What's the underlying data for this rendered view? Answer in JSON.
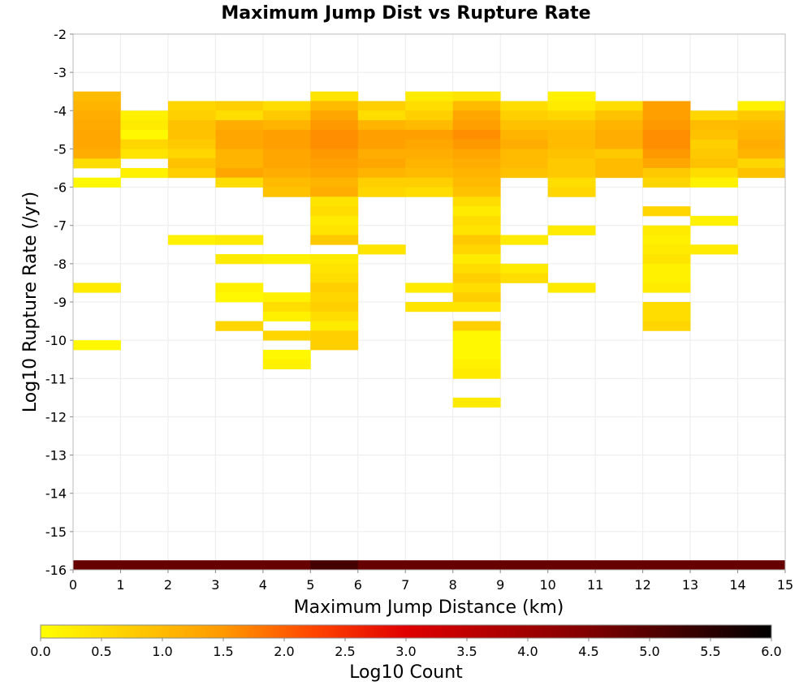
{
  "chart_data": {
    "type": "heatmap",
    "title": "Maximum Jump Dist vs Rupture Rate",
    "xlabel": "Maximum Jump Distance (km)",
    "ylabel": "Log10 Rupture Rate (/yr)",
    "xlim": [
      0,
      15
    ],
    "ylim": [
      -16,
      -2
    ],
    "x_ticks": [
      0,
      1,
      2,
      3,
      4,
      5,
      6,
      7,
      8,
      9,
      10,
      11,
      12,
      13,
      14,
      15
    ],
    "y_ticks": [
      -2,
      -3,
      -4,
      -5,
      -6,
      -7,
      -8,
      -9,
      -10,
      -11,
      -12,
      -13,
      -14,
      -15,
      -16
    ],
    "bin_width_x": 1,
    "bin_height_y": 0.25,
    "grid": true,
    "colorscale": {
      "label": "Log10 Count",
      "min": 0,
      "max": 6,
      "ticks": [
        "0.0",
        "0.5",
        "1.0",
        "1.5",
        "2.0",
        "2.5",
        "3.0",
        "3.5",
        "4.0",
        "4.5",
        "5.0",
        "5.5",
        "6.0"
      ],
      "stops": [
        "#ffff00",
        "#ffcc00",
        "#ff9900",
        "#ff4400",
        "#e00000",
        "#b00000",
        "#800000",
        "#400000",
        "#000000"
      ]
    },
    "cells_note": "each column: x bin start, then [y_bin_bottom, log10_count] pairs; y bins are 0.25 wide",
    "columns": [
      {
        "x": 0,
        "cells": [
          [
            -3.75,
            1.0
          ],
          [
            -4.0,
            1.1
          ],
          [
            -4.25,
            1.2
          ],
          [
            -4.5,
            1.25
          ],
          [
            -4.75,
            1.3
          ],
          [
            -5.0,
            1.3
          ],
          [
            -5.25,
            1.2
          ],
          [
            -5.5,
            0.5
          ],
          [
            -6.0,
            0.1
          ],
          [
            -8.75,
            0.3
          ],
          [
            -10.25,
            0.1
          ],
          [
            -16.0,
            4.8
          ]
        ]
      },
      {
        "x": 1,
        "cells": [
          [
            -4.25,
            0.2
          ],
          [
            -4.5,
            0.3
          ],
          [
            -4.75,
            0.1
          ],
          [
            -5.0,
            0.6
          ],
          [
            -5.25,
            0.4
          ],
          [
            -5.75,
            0.2
          ],
          [
            -16.0,
            4.8
          ]
        ]
      },
      {
        "x": 2,
        "cells": [
          [
            -4.0,
            0.6
          ],
          [
            -4.25,
            0.7
          ],
          [
            -4.5,
            0.9
          ],
          [
            -4.75,
            0.9
          ],
          [
            -5.0,
            0.8
          ],
          [
            -5.25,
            0.6
          ],
          [
            -5.5,
            0.9
          ],
          [
            -5.75,
            0.7
          ],
          [
            -7.5,
            0.2
          ],
          [
            -16.0,
            4.8
          ]
        ]
      },
      {
        "x": 3,
        "cells": [
          [
            -4.0,
            0.7
          ],
          [
            -4.25,
            0.5
          ],
          [
            -4.5,
            1.2
          ],
          [
            -4.75,
            1.3
          ],
          [
            -5.0,
            1.3
          ],
          [
            -5.25,
            1.1
          ],
          [
            -5.5,
            1.1
          ],
          [
            -5.75,
            1.3
          ],
          [
            -6.0,
            0.5
          ],
          [
            -7.5,
            0.3
          ],
          [
            -8.0,
            0.3
          ],
          [
            -8.75,
            0.2
          ],
          [
            -9.0,
            0.1
          ],
          [
            -9.75,
            0.6
          ],
          [
            -16.0,
            4.8
          ]
        ]
      },
      {
        "x": 4,
        "cells": [
          [
            -4.0,
            0.5
          ],
          [
            -4.25,
            0.8
          ],
          [
            -4.5,
            1.1
          ],
          [
            -4.75,
            1.4
          ],
          [
            -5.0,
            1.4
          ],
          [
            -5.25,
            1.3
          ],
          [
            -5.5,
            1.3
          ],
          [
            -5.75,
            1.2
          ],
          [
            -6.0,
            1.0
          ],
          [
            -6.25,
            0.9
          ],
          [
            -8.0,
            0.2
          ],
          [
            -9.0,
            0.2
          ],
          [
            -9.25,
            0.5
          ],
          [
            -9.5,
            0.2
          ],
          [
            -10.0,
            0.6
          ],
          [
            -10.5,
            0.1
          ],
          [
            -10.75,
            0.2
          ],
          [
            -16.0,
            4.8
          ]
        ]
      },
      {
        "x": 5,
        "cells": [
          [
            -3.75,
            0.4
          ],
          [
            -4.0,
            1.0
          ],
          [
            -4.25,
            1.3
          ],
          [
            -4.5,
            1.5
          ],
          [
            -4.75,
            1.6
          ],
          [
            -5.0,
            1.6
          ],
          [
            -5.25,
            1.5
          ],
          [
            -5.5,
            1.4
          ],
          [
            -5.75,
            1.3
          ],
          [
            -6.0,
            1.1
          ],
          [
            -6.25,
            1.2
          ],
          [
            -6.5,
            0.4
          ],
          [
            -6.75,
            0.5
          ],
          [
            -7.0,
            0.3
          ],
          [
            -7.25,
            0.4
          ],
          [
            -7.5,
            0.8
          ],
          [
            -8.0,
            0.3
          ],
          [
            -8.25,
            0.4
          ],
          [
            -8.5,
            0.5
          ],
          [
            -8.75,
            0.7
          ],
          [
            -9.0,
            0.6
          ],
          [
            -9.25,
            0.7
          ],
          [
            -9.5,
            0.5
          ],
          [
            -9.75,
            0.3
          ],
          [
            -10.0,
            0.7
          ],
          [
            -10.25,
            0.7
          ],
          [
            -16.0,
            5.2
          ]
        ]
      },
      {
        "x": 6,
        "cells": [
          [
            -4.0,
            0.7
          ],
          [
            -4.25,
            0.5
          ],
          [
            -4.5,
            1.1
          ],
          [
            -4.75,
            1.4
          ],
          [
            -5.0,
            1.4
          ],
          [
            -5.25,
            1.2
          ],
          [
            -5.5,
            1.3
          ],
          [
            -5.75,
            1.1
          ],
          [
            -6.0,
            0.7
          ],
          [
            -6.25,
            0.6
          ],
          [
            -7.75,
            0.4
          ],
          [
            -16.0,
            4.8
          ]
        ]
      },
      {
        "x": 7,
        "cells": [
          [
            -3.75,
            0.3
          ],
          [
            -4.0,
            0.5
          ],
          [
            -4.25,
            0.7
          ],
          [
            -4.5,
            1.0
          ],
          [
            -4.75,
            1.4
          ],
          [
            -5.0,
            1.3
          ],
          [
            -5.25,
            1.2
          ],
          [
            -5.5,
            1.1
          ],
          [
            -5.75,
            1.0
          ],
          [
            -6.0,
            0.7
          ],
          [
            -6.25,
            0.5
          ],
          [
            -8.75,
            0.3
          ],
          [
            -9.25,
            0.4
          ],
          [
            -16.0,
            4.8
          ]
        ]
      },
      {
        "x": 8,
        "cells": [
          [
            -3.75,
            0.4
          ],
          [
            -4.0,
            1.0
          ],
          [
            -4.25,
            1.3
          ],
          [
            -4.5,
            1.4
          ],
          [
            -4.75,
            1.6
          ],
          [
            -5.0,
            1.5
          ],
          [
            -5.25,
            1.3
          ],
          [
            -5.5,
            1.2
          ],
          [
            -5.75,
            1.1
          ],
          [
            -6.0,
            1.0
          ],
          [
            -6.25,
            0.9
          ],
          [
            -6.5,
            0.5
          ],
          [
            -6.75,
            0.3
          ],
          [
            -7.0,
            0.5
          ],
          [
            -7.25,
            0.4
          ],
          [
            -7.5,
            0.8
          ],
          [
            -7.75,
            0.6
          ],
          [
            -8.0,
            0.3
          ],
          [
            -8.25,
            0.5
          ],
          [
            -8.5,
            0.7
          ],
          [
            -8.75,
            0.5
          ],
          [
            -9.0,
            0.7
          ],
          [
            -9.25,
            0.4
          ],
          [
            -9.75,
            0.7
          ],
          [
            -10.0,
            0.1
          ],
          [
            -10.25,
            0.1
          ],
          [
            -10.5,
            0.1
          ],
          [
            -10.75,
            0.2
          ],
          [
            -11.0,
            0.3
          ],
          [
            -11.75,
            0.3
          ],
          [
            -16.0,
            4.8
          ]
        ]
      },
      {
        "x": 9,
        "cells": [
          [
            -4.0,
            0.5
          ],
          [
            -4.25,
            0.7
          ],
          [
            -4.5,
            0.9
          ],
          [
            -4.75,
            1.1
          ],
          [
            -5.0,
            1.2
          ],
          [
            -5.25,
            1.0
          ],
          [
            -5.5,
            1.0
          ],
          [
            -5.75,
            0.9
          ],
          [
            -7.5,
            0.3
          ],
          [
            -8.25,
            0.3
          ],
          [
            -8.5,
            0.5
          ],
          [
            -16.0,
            4.8
          ]
        ]
      },
      {
        "x": 10,
        "cells": [
          [
            -3.75,
            0.2
          ],
          [
            -4.0,
            0.3
          ],
          [
            -4.25,
            0.6
          ],
          [
            -4.5,
            0.9
          ],
          [
            -4.75,
            1.0
          ],
          [
            -5.0,
            1.0
          ],
          [
            -5.25,
            0.9
          ],
          [
            -5.5,
            0.8
          ],
          [
            -5.75,
            0.8
          ],
          [
            -6.0,
            0.5
          ],
          [
            -6.25,
            0.6
          ],
          [
            -7.25,
            0.3
          ],
          [
            -8.75,
            0.3
          ],
          [
            -16.0,
            4.8
          ]
        ]
      },
      {
        "x": 11,
        "cells": [
          [
            -4.0,
            0.5
          ],
          [
            -4.25,
            0.9
          ],
          [
            -4.5,
            1.1
          ],
          [
            -4.75,
            1.2
          ],
          [
            -5.0,
            1.2
          ],
          [
            -5.25,
            0.8
          ],
          [
            -5.5,
            1.0
          ],
          [
            -5.75,
            1.0
          ],
          [
            -16.0,
            4.8
          ]
        ]
      },
      {
        "x": 12,
        "cells": [
          [
            -4.0,
            1.4
          ],
          [
            -4.25,
            1.4
          ],
          [
            -4.5,
            1.5
          ],
          [
            -4.75,
            1.6
          ],
          [
            -5.0,
            1.6
          ],
          [
            -5.25,
            1.5
          ],
          [
            -5.5,
            1.3
          ],
          [
            -5.75,
            0.8
          ],
          [
            -6.0,
            0.6
          ],
          [
            -6.75,
            0.6
          ],
          [
            -7.25,
            0.3
          ],
          [
            -7.5,
            0.2
          ],
          [
            -7.75,
            0.3
          ],
          [
            -8.0,
            0.4
          ],
          [
            -8.25,
            0.2
          ],
          [
            -8.5,
            0.2
          ],
          [
            -8.75,
            0.3
          ],
          [
            -9.25,
            0.5
          ],
          [
            -9.5,
            0.5
          ],
          [
            -9.75,
            0.6
          ],
          [
            -16.0,
            4.8
          ]
        ]
      },
      {
        "x": 13,
        "cells": [
          [
            -4.25,
            0.6
          ],
          [
            -4.5,
            1.0
          ],
          [
            -4.75,
            0.9
          ],
          [
            -5.0,
            0.7
          ],
          [
            -5.25,
            0.8
          ],
          [
            -5.5,
            0.9
          ],
          [
            -5.75,
            0.5
          ],
          [
            -6.0,
            0.2
          ],
          [
            -7.0,
            0.2
          ],
          [
            -7.75,
            0.3
          ],
          [
            -16.0,
            4.8
          ]
        ]
      },
      {
        "x": 14,
        "cells": [
          [
            -4.0,
            0.2
          ],
          [
            -4.25,
            0.8
          ],
          [
            -4.5,
            1.0
          ],
          [
            -4.75,
            1.1
          ],
          [
            -5.0,
            1.2
          ],
          [
            -5.25,
            1.1
          ],
          [
            -5.5,
            0.6
          ],
          [
            -5.75,
            0.9
          ],
          [
            -16.0,
            4.8
          ]
        ]
      }
    ]
  }
}
